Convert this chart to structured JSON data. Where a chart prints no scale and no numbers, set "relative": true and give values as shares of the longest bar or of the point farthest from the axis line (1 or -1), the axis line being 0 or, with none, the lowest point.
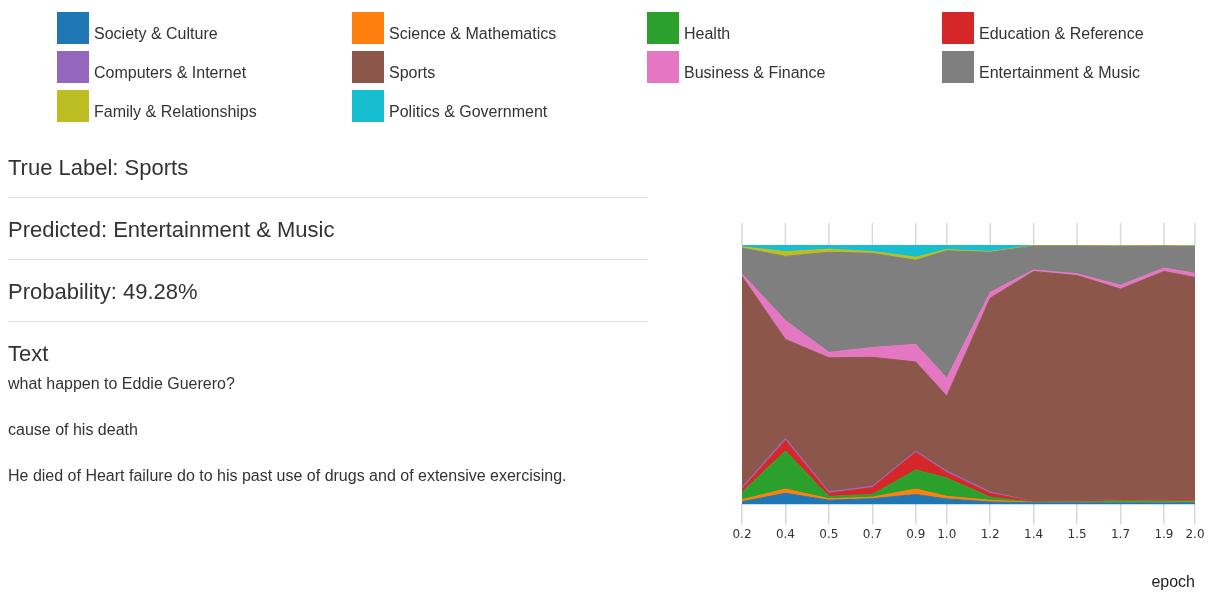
{
  "chart_data": [
    {
      "type": "other",
      "annotations": [
        "True Label: Sports",
        "Predicted: Entertainment & Music",
        "Probability: 49.28%",
        "Text",
        "what happen to Eddie Guerero?",
        "cause of his death",
        "He died of Heart failure do to his past use of drugs and of extensive exercising."
      ]
    },
    {
      "type": "area",
      "stacked": true,
      "relative": true,
      "xlabel": "epoch",
      "legend": "top",
      "tick_labels": "x",
      "x": [
        0.175,
        0.35,
        0.525,
        0.7,
        0.875,
        1.0,
        1.175,
        1.35,
        1.525,
        1.7,
        1.875,
        2.0
      ],
      "xlim": [
        0.175,
        2.0
      ],
      "xticks": [
        {
          "value": 0.175,
          "label": "0.2"
        },
        {
          "value": 0.35,
          "label": "0.4"
        },
        {
          "value": 0.525,
          "label": "0.5"
        },
        {
          "value": 0.7,
          "label": "0.7"
        },
        {
          "value": 0.875,
          "label": "0.9"
        },
        {
          "value": 1.0,
          "label": "1.0"
        },
        {
          "value": 1.175,
          "label": "1.2"
        },
        {
          "value": 1.35,
          "label": "1.4"
        },
        {
          "value": 1.525,
          "label": "1.5"
        },
        {
          "value": 1.7,
          "label": "1.7"
        },
        {
          "value": 1.875,
          "label": "1.9"
        },
        {
          "value": 2.0,
          "label": "2.0"
        }
      ],
      "series": [
        {
          "name": "Society & Culture",
          "color": "#1f77b4",
          "values": [
            0.01,
            0.043,
            0.016,
            0.022,
            0.038,
            0.021,
            0.009,
            0.006,
            0.006,
            0.006,
            0.006,
            0.006
          ]
        },
        {
          "name": "Science & Mathematics",
          "color": "#ff7f0e",
          "values": [
            0.008,
            0.016,
            0.006,
            0.006,
            0.021,
            0.01,
            0.007,
            0.002,
            0.002,
            0.003,
            0.003,
            0.003
          ]
        },
        {
          "name": "Health",
          "color": "#2ca02c",
          "values": [
            0.029,
            0.147,
            0.009,
            0.01,
            0.074,
            0.071,
            0.012,
            0.001,
            0.003,
            0.006,
            0.005,
            0.005
          ]
        },
        {
          "name": "Education & Reference",
          "color": "#d62728",
          "values": [
            0.012,
            0.041,
            0.012,
            0.027,
            0.068,
            0.021,
            0.015,
            0.001,
            0.002,
            0.003,
            0.003,
            0.006
          ]
        },
        {
          "name": "Computers & Internet",
          "color": "#9467bd",
          "values": [
            0.006,
            0.008,
            0.006,
            0.005,
            0.005,
            0.006,
            0.005,
            0.001,
            0.001,
            0.001,
            0.001,
            0.001
          ]
        },
        {
          "name": "Sports",
          "color": "#8c564b",
          "values": [
            0.814,
            0.381,
            0.516,
            0.497,
            0.343,
            0.288,
            0.747,
            0.887,
            0.868,
            0.811,
            0.88,
            0.854
          ]
        },
        {
          "name": "Business & Finance",
          "color": "#e377c2",
          "values": [
            0.01,
            0.073,
            0.021,
            0.038,
            0.068,
            0.07,
            0.023,
            0.006,
            0.007,
            0.015,
            0.013,
            0.016
          ]
        },
        {
          "name": "Entertainment & Music",
          "color": "#7f7f7f",
          "values": [
            0.099,
            0.247,
            0.386,
            0.363,
            0.324,
            0.491,
            0.154,
            0.092,
            0.107,
            0.15,
            0.085,
            0.102
          ]
        },
        {
          "name": "Family & Relationships",
          "color": "#bcbd22",
          "values": [
            0.005,
            0.019,
            0.012,
            0.007,
            0.012,
            0.005,
            0.003,
            0.002,
            0.002,
            0.002,
            0.002,
            0.003
          ]
        },
        {
          "name": "Politics & Government",
          "color": "#17becf",
          "values": [
            0.007,
            0.025,
            0.016,
            0.025,
            0.047,
            0.017,
            0.025,
            0.002,
            0.002,
            0.003,
            0.002,
            0.004
          ]
        }
      ]
    }
  ]
}
